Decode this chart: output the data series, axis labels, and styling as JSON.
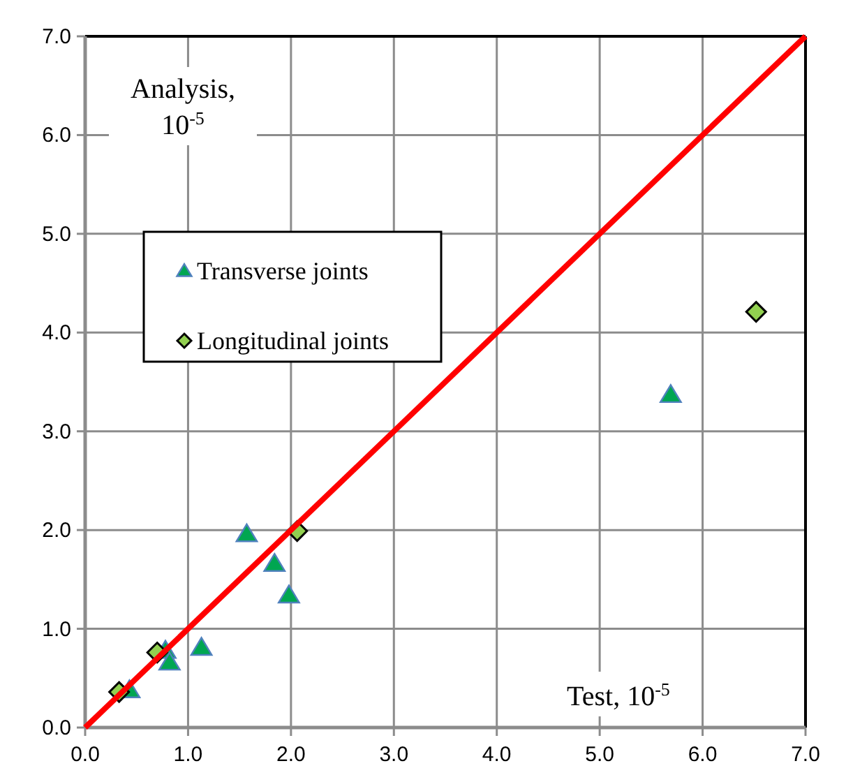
{
  "chart_data": {
    "type": "scatter",
    "xlabel": "Test, 10$^{-5}$",
    "ylabel": "Analysis, 10$^{-5}$",
    "xlim": [
      0,
      7
    ],
    "ylim": [
      0,
      7
    ],
    "xticks": [
      {
        "value": 0,
        "label": "0.0"
      },
      {
        "value": 1,
        "label": "1.0"
      },
      {
        "value": 2,
        "label": "2.0"
      },
      {
        "value": 3,
        "label": "3.0"
      },
      {
        "value": 4,
        "label": "4.0"
      },
      {
        "value": 5,
        "label": "5.0"
      },
      {
        "value": 6,
        "label": "6.0"
      },
      {
        "value": 7,
        "label": "7.0"
      }
    ],
    "yticks": [
      {
        "value": 0,
        "label": "0.0"
      },
      {
        "value": 1,
        "label": "1.0"
      },
      {
        "value": 2,
        "label": "2.0"
      },
      {
        "value": 3,
        "label": "3.0"
      },
      {
        "value": 4,
        "label": "4.0"
      },
      {
        "value": 5,
        "label": "5.0"
      },
      {
        "value": 6,
        "label": "6.0"
      },
      {
        "value": 7,
        "label": "7.0"
      }
    ],
    "grid": true,
    "legend": "top left",
    "series": [
      {
        "name": "Transverse joints",
        "color": "#00a651",
        "marker": "triangle",
        "x": [
          0.43,
          0.78,
          0.82,
          1.13,
          1.57,
          1.84,
          1.98,
          5.69
        ],
        "values": [
          0.38,
          0.78,
          0.66,
          0.81,
          1.96,
          1.66,
          1.34,
          3.37
        ]
      },
      {
        "name": "Longitudinal joints",
        "color": "#92d050",
        "marker": "diamond",
        "x": [
          0.33,
          0.7,
          2.06,
          6.52
        ],
        "values": [
          0.36,
          0.76,
          1.99,
          4.21
        ]
      },
      {
        "type": "line",
        "color": "#ff0000",
        "marker": "none",
        "line_style": "solid",
        "x": [
          0,
          7
        ],
        "values": [
          0,
          7
        ]
      }
    ]
  }
}
